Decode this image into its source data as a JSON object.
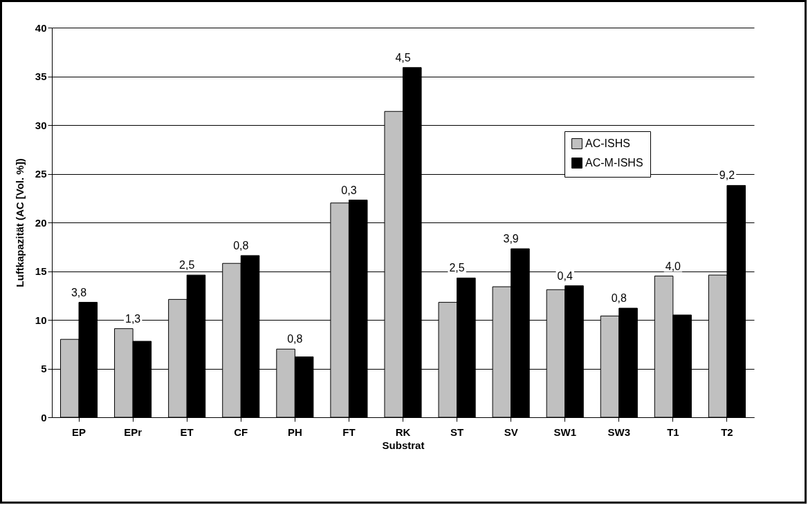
{
  "chart_data": {
    "type": "bar",
    "xlabel": "Substrat",
    "ylabel": "Luftkapazität (AC [Vol. %])",
    "categories": [
      "EP",
      "EPr",
      "ET",
      "CF",
      "PH",
      "FT",
      "RK",
      "ST",
      "SV",
      "SW1",
      "SW3",
      "T1",
      "T2"
    ],
    "series": [
      {
        "name": "AC-ISHS",
        "color": "#c0c0c0",
        "values": [
          8.0,
          9.1,
          12.1,
          15.8,
          7.0,
          22.0,
          31.4,
          11.8,
          13.4,
          13.1,
          10.4,
          14.5,
          14.6
        ]
      },
      {
        "name": "AC-M-ISHS",
        "color": "#000000",
        "values": [
          11.8,
          7.8,
          14.6,
          16.6,
          6.2,
          22.3,
          35.9,
          14.3,
          17.3,
          13.5,
          11.2,
          10.5,
          23.8
        ]
      }
    ],
    "annotations": [
      {
        "text": "3,8",
        "x": "EP",
        "y": 11.8
      },
      {
        "text": "1,3",
        "x": "EPr",
        "y": 9.1
      },
      {
        "text": "2,5",
        "x": "ET",
        "y": 14.6
      },
      {
        "text": "0,8",
        "x": "CF",
        "y": 16.6
      },
      {
        "text": "0,8",
        "x": "PH",
        "y": 7.0
      },
      {
        "text": "0,3",
        "x": "FT",
        "y": 22.3
      },
      {
        "text": "4,5",
        "x": "RK",
        "y": 35.9
      },
      {
        "text": "2,5",
        "x": "ST",
        "y": 14.3
      },
      {
        "text": "3,9",
        "x": "SV",
        "y": 17.3
      },
      {
        "text": "0,4",
        "x": "SW1",
        "y": 13.5
      },
      {
        "text": "0,8",
        "x": "SW3",
        "y": 11.2
      },
      {
        "text": "4,0",
        "x": "T1",
        "y": 14.5
      },
      {
        "text": "9,2",
        "x": "T2",
        "y": 23.8
      }
    ],
    "ylim": [
      0,
      40
    ],
    "yticks": [
      0,
      5,
      10,
      15,
      20,
      25,
      30,
      35,
      40
    ],
    "grid": "y",
    "legend": "top right"
  }
}
